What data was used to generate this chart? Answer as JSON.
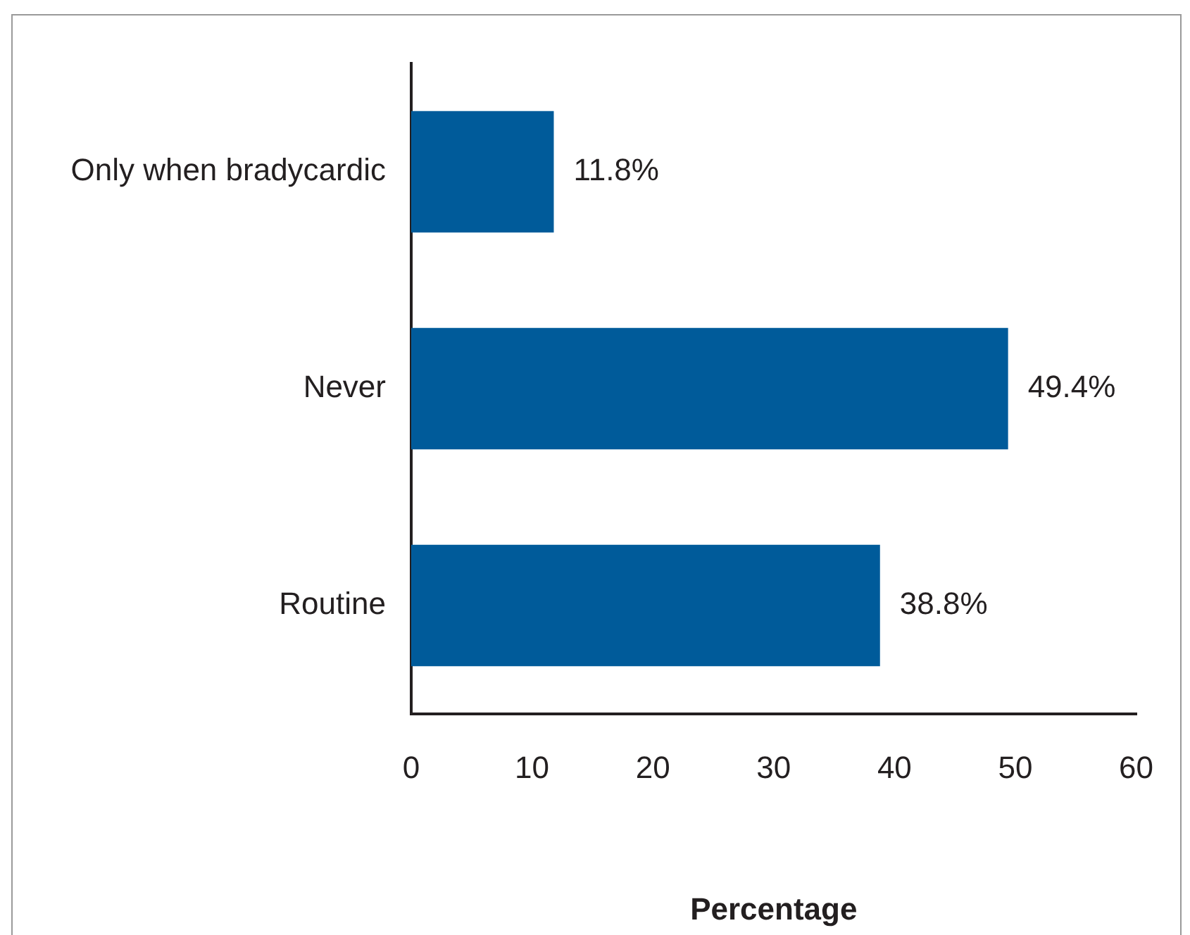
{
  "chart_data": {
    "type": "bar",
    "orientation": "horizontal",
    "xlabel": "Percentage",
    "categories": [
      "Only when bradycardic",
      "Never",
      "Routine"
    ],
    "values": [
      11.8,
      49.4,
      38.8
    ],
    "value_labels": [
      "11.8%",
      "49.4%",
      "38.8%"
    ],
    "color": "#005b9a",
    "xlim": [
      0,
      60
    ],
    "xticks": [
      0,
      10,
      20,
      30,
      40,
      50,
      60
    ],
    "grid": false,
    "legend": false
  }
}
